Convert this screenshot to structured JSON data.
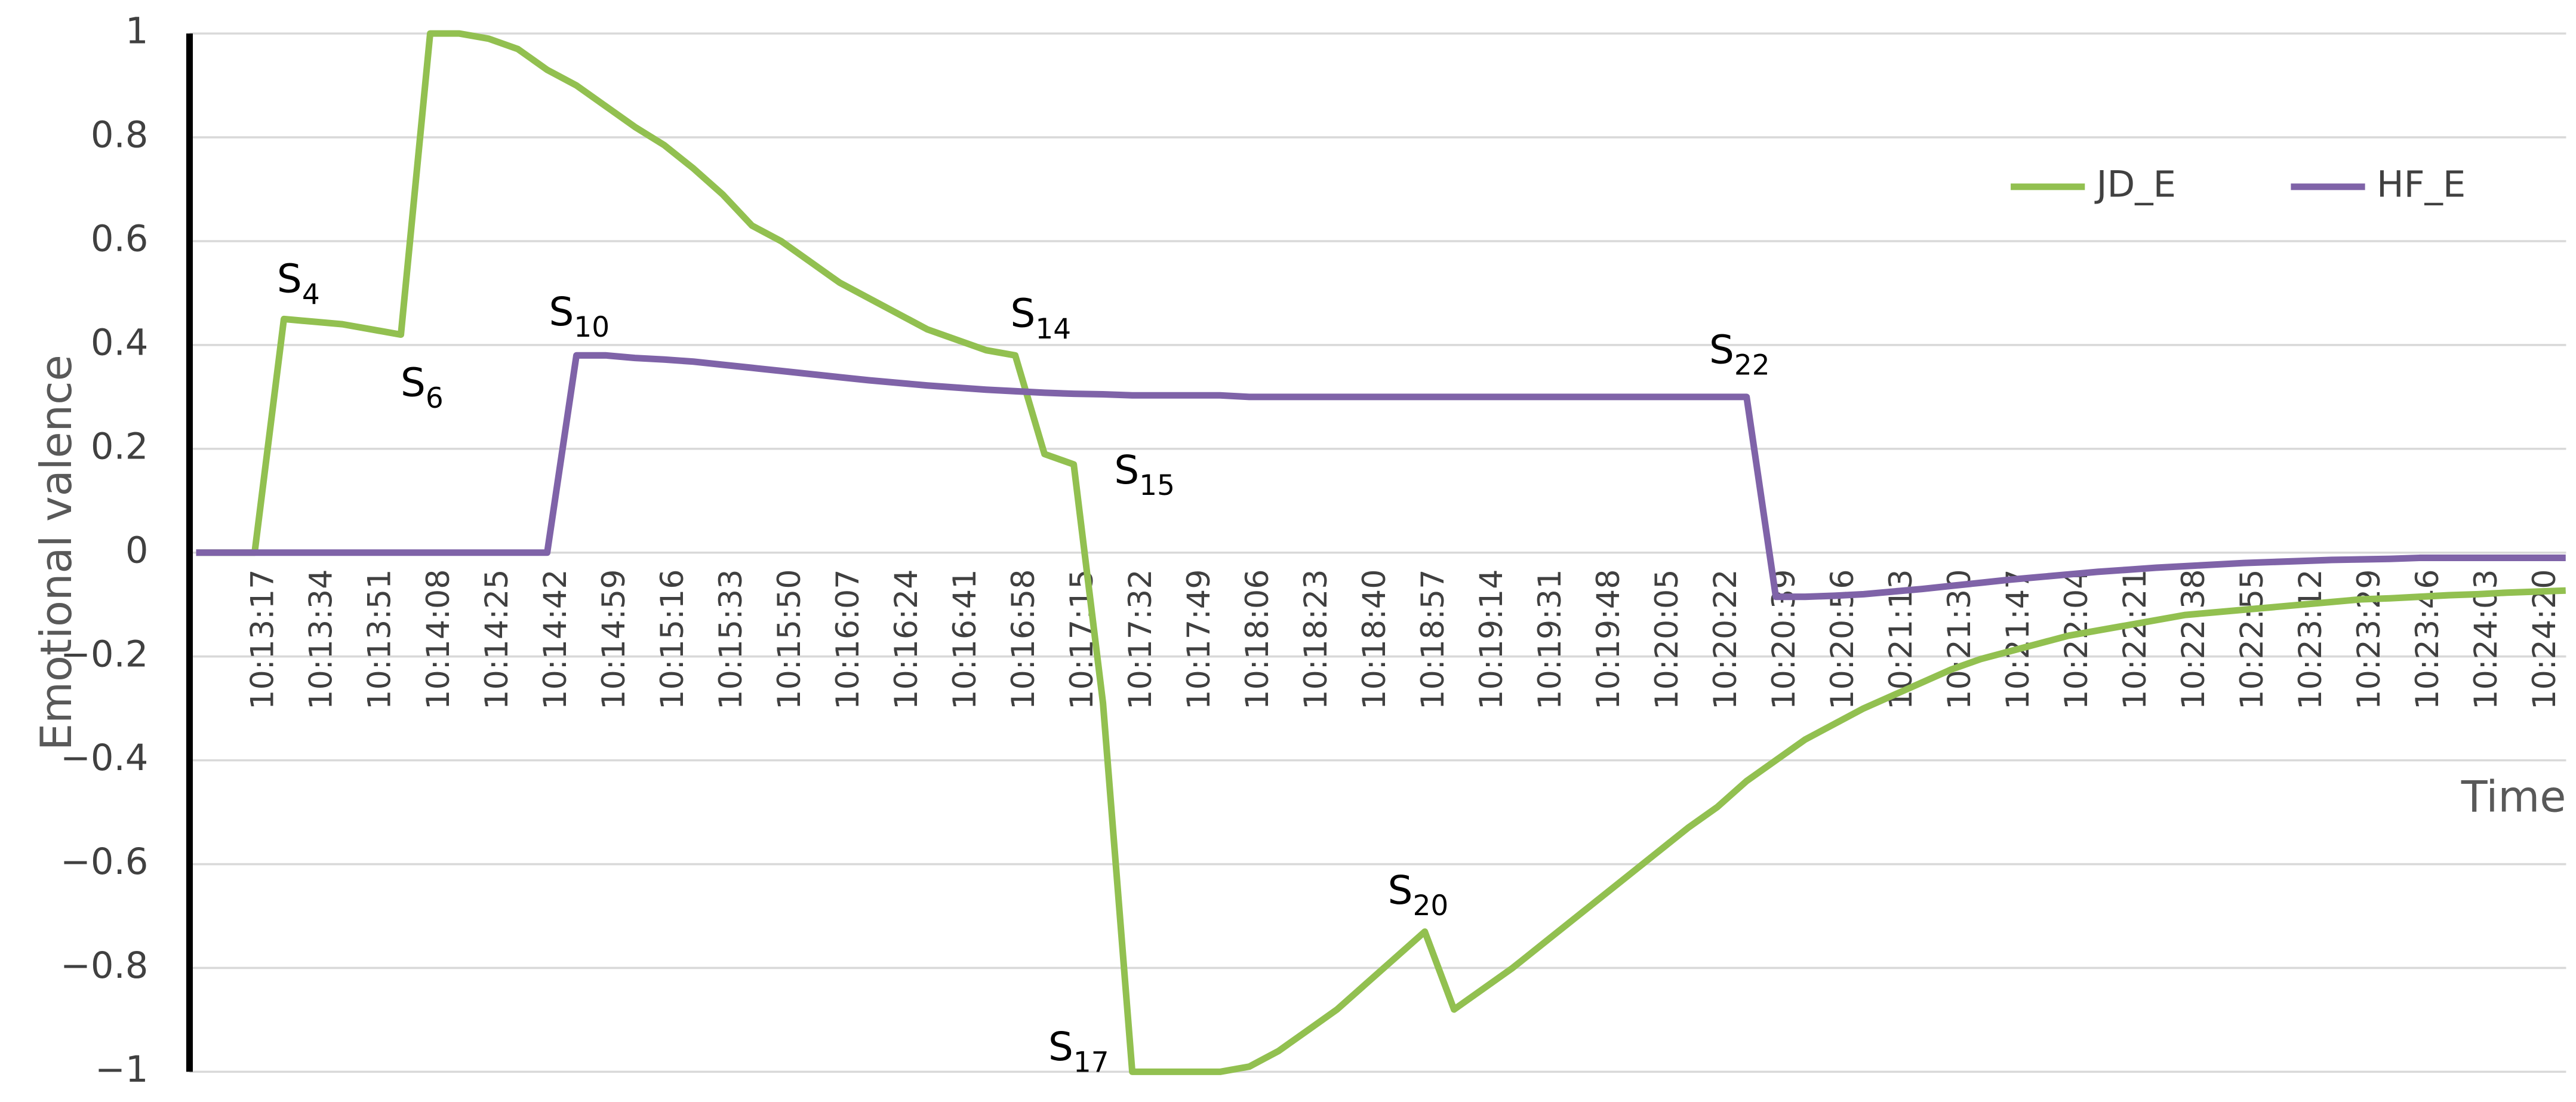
{
  "chart_data": {
    "type": "line",
    "y_label": "Emotional valence",
    "x_label": "Time",
    "categories": [
      null,
      null,
      "10:13:17",
      null,
      "10:13:34",
      null,
      "10:13:51",
      null,
      "10:14:08",
      null,
      "10:14:25",
      null,
      "10:14:42",
      null,
      "10:14:59",
      null,
      "10:15:16",
      null,
      "10:15:33",
      null,
      "10:15:50",
      null,
      "10:16:07",
      null,
      "10:16:24",
      null,
      "10:16:41",
      null,
      "10:16:58",
      null,
      "10:17:15",
      null,
      "10:17:32",
      null,
      "10:17:49",
      null,
      "10:18:06",
      null,
      "10:18:23",
      null,
      "10:18:40",
      null,
      "10:18:57",
      null,
      "10:19:14",
      null,
      "10:19:31",
      null,
      "10:19:48",
      null,
      "10:20:05",
      null,
      "10:20:22",
      null,
      "10:20:39",
      null,
      "10:20:56",
      null,
      "10:21:13",
      null,
      "10:21:30",
      null,
      "10:21:47",
      null,
      "10:22:04",
      null,
      "10:22:21",
      null,
      "10:22:38",
      null,
      "10:22:55",
      null,
      "10:23:12",
      null,
      "10:23:29",
      null,
      "10:23:46",
      null,
      "10:24:03",
      null,
      "10:24:20",
      null
    ],
    "series": [
      {
        "name": "JD_E",
        "color": "#92c050",
        "values": [
          0,
          0,
          0,
          0.45,
          0.445,
          0.44,
          0.43,
          0.42,
          1,
          1,
          0.99,
          0.97,
          0.93,
          0.9,
          0.86,
          0.82,
          0.785,
          0.74,
          0.69,
          0.63,
          0.6,
          0.56,
          0.52,
          0.49,
          0.46,
          0.43,
          0.41,
          0.39,
          0.38,
          0.19,
          0.17,
          -0.29,
          -1,
          -1,
          -1,
          -1,
          -0.99,
          -0.96,
          -0.92,
          -0.88,
          -0.83,
          -0.78,
          -0.73,
          -0.88,
          -0.84,
          -0.8,
          -0.755,
          -0.71,
          -0.665,
          -0.62,
          -0.575,
          -0.53,
          -0.49,
          -0.44,
          -0.4,
          -0.36,
          -0.33,
          -0.3,
          -0.275,
          -0.25,
          -0.225,
          -0.205,
          -0.19,
          -0.175,
          -0.16,
          -0.15,
          -0.14,
          -0.13,
          -0.12,
          -0.115,
          -0.11,
          -0.105,
          -0.1,
          -0.095,
          -0.09,
          -0.088,
          -0.085,
          -0.082,
          -0.08,
          -0.077,
          -0.075,
          -0.073
        ]
      },
      {
        "name": "HF_E",
        "color": "#7f63a8",
        "values": [
          0,
          0,
          0,
          0,
          0,
          0,
          0,
          0,
          0,
          0,
          0,
          0,
          0,
          0.38,
          0.38,
          0.375,
          0.372,
          0.368,
          0.362,
          0.356,
          0.35,
          0.344,
          0.338,
          0.332,
          0.327,
          0.322,
          0.318,
          0.314,
          0.311,
          0.308,
          0.306,
          0.305,
          0.303,
          0.303,
          0.303,
          0.303,
          0.3,
          0.3,
          0.3,
          0.3,
          0.3,
          0.3,
          0.3,
          0.3,
          0.3,
          0.3,
          0.3,
          0.3,
          0.3,
          0.3,
          0.3,
          0.3,
          0.3,
          0.3,
          -0.085,
          -0.085,
          -0.083,
          -0.08,
          -0.075,
          -0.07,
          -0.064,
          -0.058,
          -0.052,
          -0.047,
          -0.042,
          -0.037,
          -0.033,
          -0.029,
          -0.026,
          -0.023,
          -0.02,
          -0.018,
          -0.016,
          -0.014,
          -0.013,
          -0.012,
          -0.01,
          -0.01,
          -0.01,
          -0.01,
          -0.01,
          -0.01
        ]
      }
    ],
    "ylim": [
      -1,
      1
    ],
    "yticks": [
      {
        "value": -1,
        "label": "−1"
      },
      {
        "value": -0.8,
        "label": "−0.8"
      },
      {
        "value": -0.6,
        "label": "−0.6"
      },
      {
        "value": -0.4,
        "label": "−0.4"
      },
      {
        "value": -0.2,
        "label": "−0.2"
      },
      0,
      0.2,
      0.4,
      0.6,
      0.8,
      1
    ],
    "grid": true,
    "legend": "upper right",
    "annotations": [
      {
        "text": "S",
        "sub": "4"
      },
      {
        "text": "S",
        "sub": "6"
      },
      {
        "text": "S",
        "sub": "10"
      },
      {
        "text": "S",
        "sub": "14"
      },
      {
        "text": "S",
        "sub": "15"
      },
      {
        "text": "S",
        "sub": "17"
      },
      {
        "text": "S",
        "sub": "20"
      },
      {
        "text": "S",
        "sub": "22"
      }
    ]
  }
}
